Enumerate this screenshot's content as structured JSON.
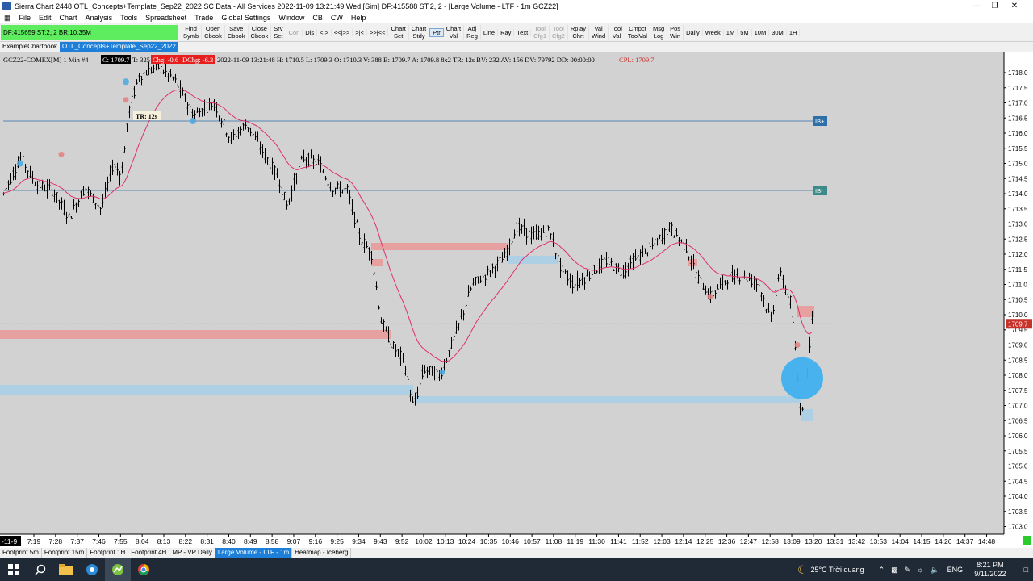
{
  "window": {
    "title": "Sierra Chart 2448 OTL_Concepts+Template_Sep22_2022  SC Data - All Services 2022-11-09  13:21:49 Wed [Sim]  DF:415588  ST:2, 2 - [Large Volume - LTF - 1m GCZ22]"
  },
  "menu": [
    "File",
    "Edit",
    "Chart",
    "Analysis",
    "Tools",
    "Spreadsheet",
    "Trade",
    "Global Settings",
    "Window",
    "CB",
    "CW",
    "Help"
  ],
  "toolbar": {
    "dom_status": "DF:415659  ST:2, 2  BR:10.35M",
    "buttons": [
      {
        "l1": "Find",
        "l2": "Symb",
        "s": "n"
      },
      {
        "l1": "Open",
        "l2": "Cbook",
        "s": "n"
      },
      {
        "l1": "Save",
        "l2": "Cbook",
        "s": "n"
      },
      {
        "l1": "Close",
        "l2": "Cbook",
        "s": "n"
      },
      {
        "l1": "Srv",
        "l2": "Set",
        "s": "n"
      },
      {
        "l1": "Con",
        "l2": "",
        "s": "d"
      },
      {
        "l1": "Dis",
        "l2": "",
        "s": "n"
      },
      {
        "l1": "<|>",
        "l2": "",
        "s": "n"
      },
      {
        "l1": "<<|>>",
        "l2": "",
        "s": "n"
      },
      {
        "l1": ">|<",
        "l2": "",
        "s": "n"
      },
      {
        "l1": ">>|<<",
        "l2": "",
        "s": "n"
      },
      {
        "l1": "Chart",
        "l2": "Set",
        "s": "n"
      },
      {
        "l1": "Chart",
        "l2": "Stdy",
        "s": "n"
      },
      {
        "l1": "Ptr",
        "l2": "",
        "s": "s"
      },
      {
        "l1": "Chart",
        "l2": "Val",
        "s": "n"
      },
      {
        "l1": "Adj",
        "l2": "Reg",
        "s": "n"
      },
      {
        "l1": "Line",
        "l2": "",
        "s": "n"
      },
      {
        "l1": "Ray",
        "l2": "",
        "s": "n"
      },
      {
        "l1": "Text",
        "l2": "",
        "s": "n"
      },
      {
        "l1": "Tool",
        "l2": "Cfg1",
        "s": "d"
      },
      {
        "l1": "Tool",
        "l2": "Cfg2",
        "s": "d"
      },
      {
        "l1": "Rplay",
        "l2": "Chrt",
        "s": "n"
      },
      {
        "l1": "Val",
        "l2": "Wind",
        "s": "n"
      },
      {
        "l1": "Tool",
        "l2": "Val",
        "s": "n"
      },
      {
        "l1": "Cmpct",
        "l2": "ToolVal",
        "s": "n"
      },
      {
        "l1": "Msg",
        "l2": "Log",
        "s": "n"
      },
      {
        "l1": "Pos",
        "l2": "Win",
        "s": "n"
      },
      {
        "l1": "Daily",
        "l2": "",
        "s": "n"
      },
      {
        "l1": "Week",
        "l2": "",
        "s": "n"
      },
      {
        "l1": "1M",
        "l2": "",
        "s": "n"
      },
      {
        "l1": "5M",
        "l2": "",
        "s": "n"
      },
      {
        "l1": "10M",
        "l2": "",
        "s": "n"
      },
      {
        "l1": "30M",
        "l2": "",
        "s": "n"
      },
      {
        "l1": "1H",
        "l2": "",
        "s": "n"
      }
    ]
  },
  "chartbook_tabs": [
    "ExampleChartbook",
    "OTL_Concepts+Template_Sep22_2022"
  ],
  "chartbook_active": 1,
  "chart": {
    "header": {
      "symbol": "GCZ22-COMEX[M]  1 Min  #4",
      "close": "C: 1709.7",
      "trades": "T: 325",
      "chg": "Chg: -0.6",
      "dchg": "DChg: -6.3",
      "info": "2022-11-09 13:21:48 H: 1710.5 L: 1709.3 O: 1710.3 V: 388 B: 1709.7 A: 1709.8 8x2 TR: 12s BV: 232 AV: 156 DV: 79792 DD: 00:00:00",
      "cpl": "CPL: 1709.7"
    },
    "tr_label": "TR: 12s",
    "current_price": "1709.7",
    "ib_labels": [
      "IB+",
      "IB-"
    ],
    "corner_label": "-11-9",
    "time_labels": [
      "7:19",
      "7:28",
      "7:37",
      "7:46",
      "7:55",
      "8:04",
      "8:13",
      "8:22",
      "8:31",
      "8:40",
      "8:49",
      "8:58",
      "9:07",
      "9:16",
      "9:25",
      "9:34",
      "9:43",
      "9:52",
      "10:02",
      "10:13",
      "10:24",
      "10:35",
      "10:46",
      "10:57",
      "11:08",
      "11:19",
      "11:30",
      "11:41",
      "11:52",
      "12:03",
      "12:14",
      "12:25",
      "12:36",
      "12:47",
      "12:58",
      "13:09",
      "13:20",
      "13:31",
      "13:42",
      "13:53",
      "14:04",
      "14:15",
      "14:26",
      "14:37",
      "14:48"
    ],
    "price_labels": [
      "1718.0",
      "1717.5",
      "1717.0",
      "1716.5",
      "1716.0",
      "1715.5",
      "1715.0",
      "1714.5",
      "1714.0",
      "1713.5",
      "1713.0",
      "1712.5",
      "1712.0",
      "1711.5",
      "1711.0",
      "1710.5",
      "1710.0",
      "1709.5",
      "1709.0",
      "1708.5",
      "1708.0",
      "1707.5",
      "1707.0",
      "1706.5",
      "1706.0",
      "1705.5",
      "1705.0",
      "1704.5",
      "1704.0",
      "1703.5",
      "1703.0"
    ],
    "colors": {
      "background": "#d2d2d2",
      "bar": "#000000",
      "ma": "#e0306a",
      "red_zone": "#e89a9a",
      "blue_zone": "#a8cfe6",
      "ib": "#2f6fa8",
      "price_marker": "#c8302a"
    }
  },
  "chart_tabs": [
    "Footprint 5m",
    "Footprint 15m",
    "Footprint 1H",
    "Footprint 4H",
    "MP - VP Daily",
    "Large Volume - LTF - 1m",
    "Heatmap - Iceberg"
  ],
  "chart_tab_active": 5,
  "taskbar": {
    "weather": "25°C  Trời quang",
    "lang": "ENG",
    "time": "8:21 PM",
    "date": "9/11/2022"
  }
}
